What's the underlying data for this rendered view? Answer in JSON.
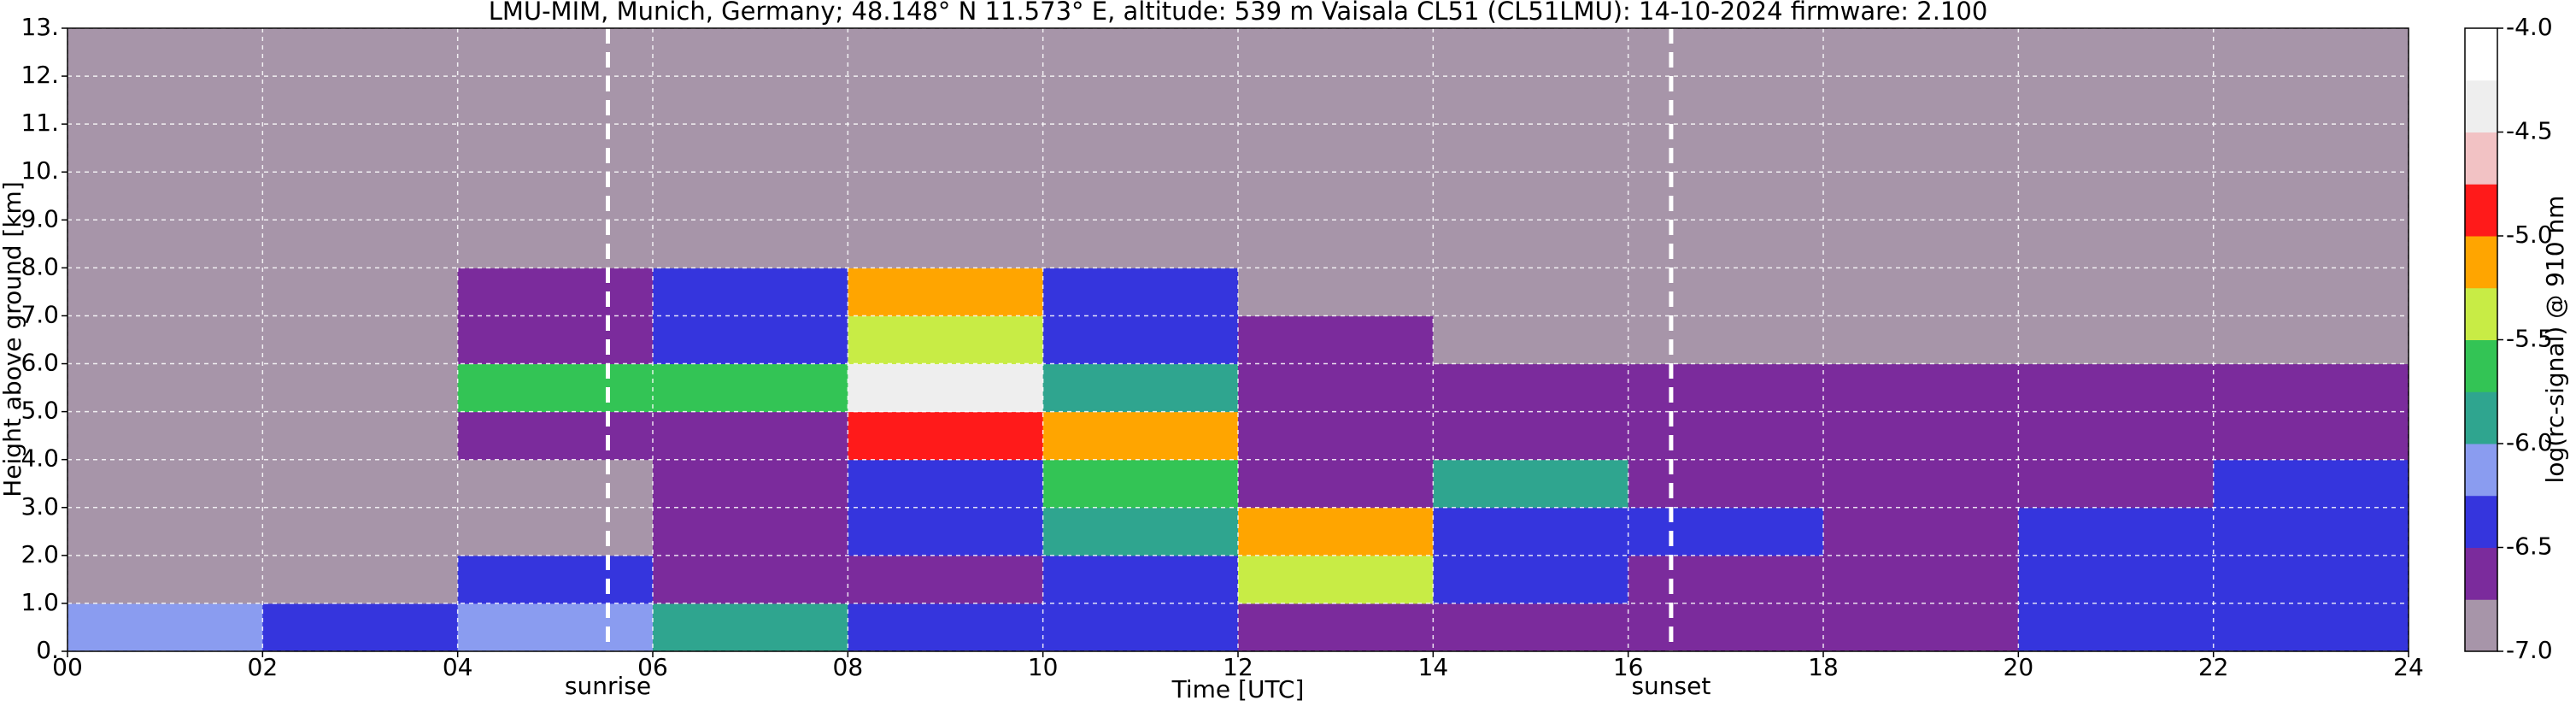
{
  "chart_data": {
    "type": "heatmap",
    "title": "LMU-MIM, Munich, Germany; 48.148° N 11.573° E, altitude: 539 m    Vaisala CL51 (CL51LMU): 14-10-2024    firmware: 2.100",
    "x_label": "Time [UTC]",
    "y_label": "Height above ground [km]",
    "colorbar_label": "log(rc-signal) @ 910 nm",
    "x_edges": [
      0,
      2,
      4,
      6,
      8,
      10,
      12,
      14,
      16,
      18,
      20,
      22,
      24
    ],
    "y_edges": [
      0,
      1,
      2,
      3,
      4,
      5,
      6,
      7,
      8,
      9,
      10,
      11,
      12,
      13
    ],
    "z": [
      [
        -6.2,
        -6.3,
        -6.1,
        -6.0,
        -6.4,
        -6.5,
        -6.6,
        -6.6,
        -6.6,
        -6.6,
        -6.5,
        -6.3
      ],
      [
        -6.9,
        -6.9,
        -6.4,
        -6.6,
        -6.7,
        -6.3,
        -5.5,
        -6.5,
        -6.6,
        -6.6,
        -6.3,
        -6.4
      ],
      [
        -6.8,
        -6.8,
        -6.8,
        -6.7,
        -6.5,
        -5.8,
        -5.2,
        -6.3,
        -6.5,
        -6.6,
        -6.5,
        -6.3
      ],
      [
        -6.8,
        -6.8,
        -6.8,
        -6.7,
        -6.4,
        -5.6,
        -6.6,
        -5.8,
        -6.6,
        -6.6,
        -6.6,
        -6.3
      ],
      [
        -6.8,
        -6.8,
        -6.7,
        -6.6,
        -5.0,
        -5.2,
        -6.7,
        -6.7,
        -6.7,
        -6.7,
        -6.7,
        -6.7
      ],
      [
        -6.8,
        -6.8,
        -5.6,
        -5.7,
        -4.4,
        -6.0,
        -6.7,
        -6.7,
        -6.7,
        -6.7,
        -6.7,
        -6.7
      ],
      [
        -6.8,
        -6.8,
        -6.7,
        -6.4,
        -5.5,
        -6.4,
        -6.7,
        -6.8,
        -6.8,
        -6.8,
        -6.8,
        -6.8
      ],
      [
        -6.8,
        -6.8,
        -6.7,
        -6.5,
        -5.2,
        -6.5,
        -6.8,
        -6.8,
        -6.8,
        -6.8,
        -6.8,
        -6.8
      ],
      [
        -6.8,
        -6.8,
        -6.8,
        -6.8,
        -6.8,
        -6.8,
        -6.8,
        -6.8,
        -6.8,
        -6.8,
        -6.8,
        -6.8
      ],
      [
        -6.8,
        -6.8,
        -6.8,
        -6.8,
        -6.8,
        -6.8,
        -6.8,
        -6.8,
        -6.8,
        -6.8,
        -6.8,
        -6.8
      ],
      [
        -6.8,
        -6.8,
        -6.8,
        -6.8,
        -6.8,
        -6.8,
        -6.8,
        -6.8,
        -6.8,
        -6.8,
        -6.8,
        -6.8
      ],
      [
        -6.8,
        -6.8,
        -6.8,
        -6.8,
        -6.8,
        -6.8,
        -6.8,
        -6.8,
        -6.8,
        -6.8,
        -6.8,
        -6.8
      ],
      [
        -6.8,
        -6.8,
        -6.8,
        -6.8,
        -6.8,
        -6.8,
        -6.8,
        -6.8,
        -6.8,
        -6.8,
        -6.8,
        -6.8
      ]
    ],
    "xlim": [
      0,
      24
    ],
    "ylim": [
      0,
      13
    ],
    "xticks": [
      {
        "value": 0,
        "label": "00"
      },
      {
        "value": 2,
        "label": "02"
      },
      {
        "value": 4,
        "label": "04"
      },
      {
        "value": 6,
        "label": "06"
      },
      {
        "value": 8,
        "label": "08"
      },
      10,
      12,
      14,
      16,
      18,
      20,
      22,
      24
    ],
    "yticks": [
      {
        "value": 0,
        "label": "0."
      },
      {
        "value": 1,
        "label": "1.0"
      },
      {
        "value": 2,
        "label": "2.0"
      },
      {
        "value": 3,
        "label": "3.0"
      },
      {
        "value": 4,
        "label": "4.0"
      },
      {
        "value": 5,
        "label": "5.0"
      },
      {
        "value": 6,
        "label": "6.0"
      },
      {
        "value": 7,
        "label": "7.0"
      },
      {
        "value": 8,
        "label": "8.0"
      },
      {
        "value": 9,
        "label": "9.0"
      },
      {
        "value": 10,
        "label": "10."
      },
      {
        "value": 11,
        "label": "11."
      },
      {
        "value": 12,
        "label": "12."
      },
      {
        "value": 13,
        "label": "13."
      }
    ],
    "clim": [
      -7,
      -4
    ],
    "cticks": [
      {
        "value": -7,
        "label": "-7.0"
      },
      {
        "value": -6.5,
        "label": "-6.5"
      },
      {
        "value": -6,
        "label": "-6.0"
      },
      {
        "value": -5.5,
        "label": "-5.5"
      },
      {
        "value": -5,
        "label": "-5.0"
      },
      {
        "value": -4.5,
        "label": "-4.5"
      },
      {
        "value": -4,
        "label": "-4.0"
      }
    ],
    "color_bounds": [
      -7,
      -6.75,
      -6.5,
      -6.25,
      -6,
      -5.75,
      -5.5,
      -5.25,
      -5,
      -4.75,
      -4.5,
      -4.25,
      -4
    ],
    "colors": [
      "#a795a9",
      "#7b2b9c",
      "#3535dd",
      "#8a9cf0",
      "#2fa58f",
      "#33c455",
      "#c8ec45",
      "#ffa500",
      "#ff1a1a",
      "#f2c2c4",
      "#eeeeee",
      "#ffffff"
    ],
    "grid": true,
    "annotations": [
      {
        "text": "sunrise",
        "x": 5.54
      },
      {
        "text": "sunset",
        "x": 16.44
      }
    ]
  }
}
